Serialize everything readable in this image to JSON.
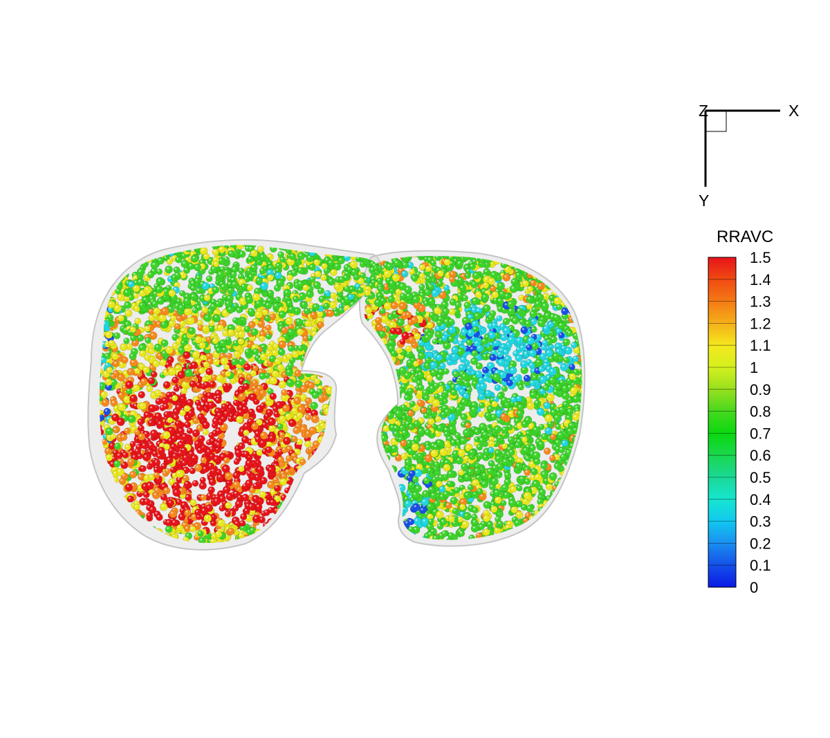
{
  "axes": {
    "x_label": "X",
    "y_label": "Y",
    "z_label": "Z"
  },
  "legend": {
    "title": "RRAVC",
    "ticks": [
      "1.5",
      "1.4",
      "1.3",
      "1.2",
      "1.1",
      "1",
      "0.9",
      "0.8",
      "0.7",
      "0.6",
      "0.5",
      "0.4",
      "0.3",
      "0.2",
      "0.1",
      "0"
    ],
    "colors": [
      "#e8141a",
      "#f04a12",
      "#f57a14",
      "#f5b01a",
      "#f5e81e",
      "#d4f01e",
      "#98e01e",
      "#46d81e",
      "#0ad80e",
      "#1ad84e",
      "#1ad896",
      "#16e6d0",
      "#12c8f0",
      "#1a8ef0",
      "#1450e8",
      "#0a1ae6"
    ]
  },
  "palette": {
    "red": "#e8141a",
    "orange": "#f5891c",
    "yellow": "#e8e61e",
    "green": "#3cd42a",
    "cyan": "#22d6e0",
    "blue": "#1a4ee8"
  }
}
